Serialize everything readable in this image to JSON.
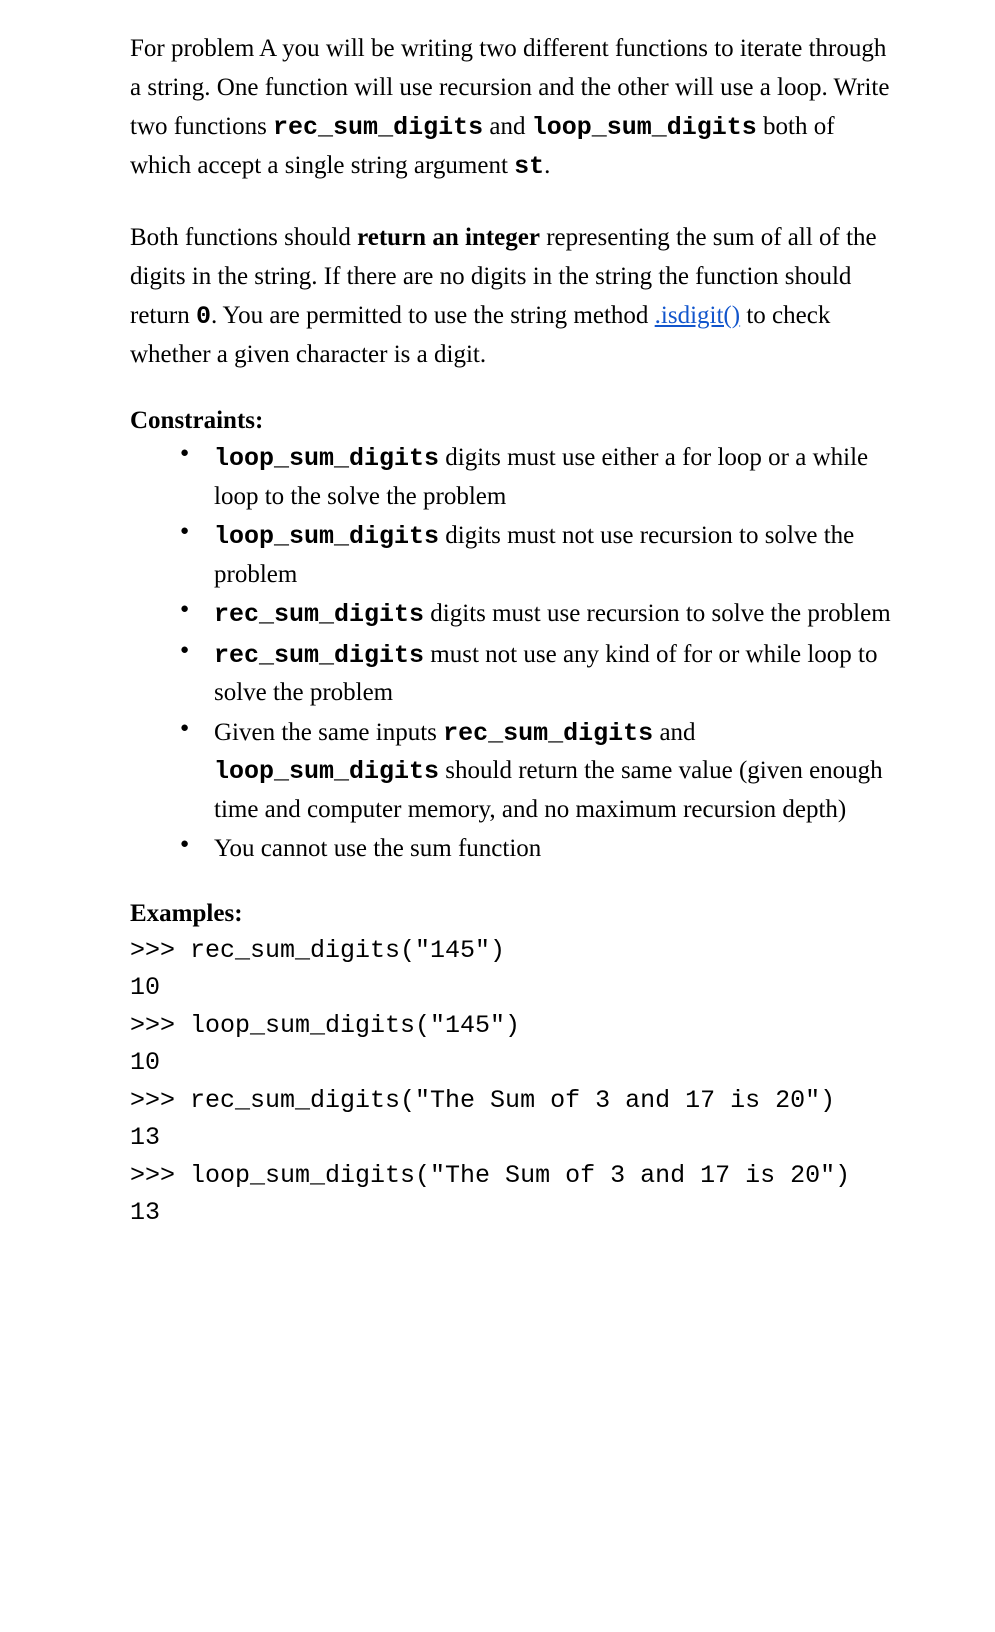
{
  "para1": {
    "t1": "For problem A you will be writing two different functions to iterate through a string. One function will use recursion and the other will use a loop. Write two functions ",
    "code1": "rec_sum_digits",
    "t2": " and ",
    "code2": "loop_sum_digits",
    "t3": " both of which accept a single string argument ",
    "code3": "st",
    "t4": "."
  },
  "para2": {
    "t1": "Both functions should  ",
    "bold1": "return an integer",
    "t2": " representing the sum of all of the digits in the string.  If there are no digits in the string the function should return ",
    "code1": "0",
    "t3": ".  You are permitted to use the string method ",
    "link1": ".isdigit()",
    "t4": " to check whether a given character is a digit."
  },
  "constraints_heading": "Constraints",
  "constraints": [
    {
      "code1": "loop_sum_digits",
      "t1": "  digits must use either a for loop or a while loop to the solve the problem"
    },
    {
      "code1": "loop_sum_digits",
      "t1": "  digits must not use recursion to solve the problem"
    },
    {
      "code1": "rec_sum_digits",
      "t1": "  digits must use recursion to solve the problem"
    },
    {
      "code1": "rec_sum_digits",
      "t1": "  must not use any kind of for or while loop to solve the problem"
    },
    {
      "t0": "Given the same inputs  ",
      "code1": "rec_sum_digits",
      "t1": " and ",
      "code2": "loop_sum_digits",
      "t2": " should return the same value (given enough time and computer memory, and no maximum recursion depth)"
    },
    {
      "t0": "You cannot use the sum function"
    }
  ],
  "examples_heading": "Examples",
  "examples_text": ">>> rec_sum_digits(\"145\")\n10\n>>> loop_sum_digits(\"145\")\n10\n>>> rec_sum_digits(\"The Sum of 3 and 17 is 20\")\n13\n>>> loop_sum_digits(\"The Sum of 3 and 17 is 20\")\n13"
}
